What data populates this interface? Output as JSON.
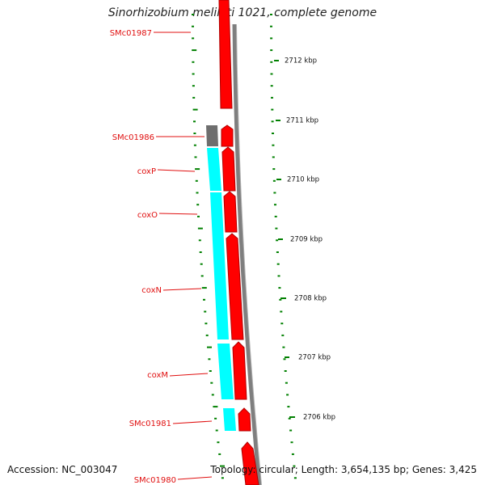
{
  "title": "Sinorhizobium meliloti 1021, complete genome",
  "footer": {
    "accession": "Accession: NC_003047",
    "info": "Topology: circular; Length: 3,654,135 bp; Genes: 3,425"
  },
  "genes": [
    "SMc01987",
    "SMc01986",
    "coxP",
    "coxO",
    "coxN",
    "coxM",
    "SMc01981",
    "SMc01980"
  ],
  "scale": [
    "2712 kbp",
    "2711 kbp",
    "2710 kbp",
    "2709 kbp",
    "2708 kbp",
    "2707 kbp",
    "2706 kbp"
  ],
  "colors": {
    "forward_strand": "#ff0000",
    "cog_track": "#00ffff",
    "backbone": "#808080",
    "ticks": "#008000",
    "labels": "#e01010"
  }
}
